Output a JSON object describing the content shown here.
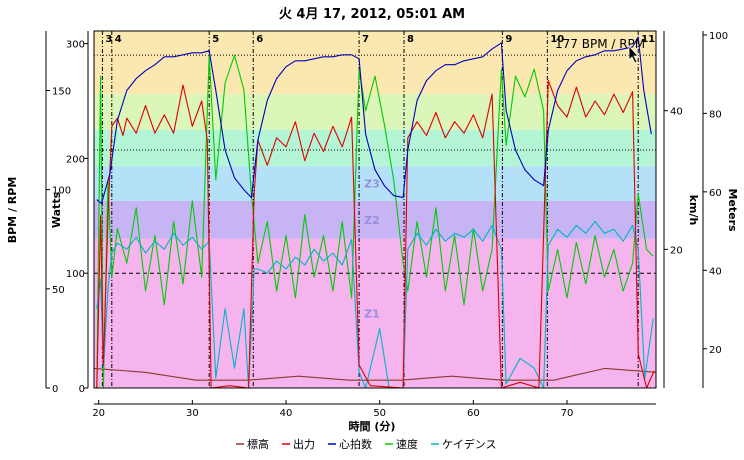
{
  "chart_data": {
    "type": "line",
    "title": "火 4月 17, 2012, 05:01 AM",
    "xlabel": "時間 (分)",
    "xlim": [
      19.5,
      79.5
    ],
    "x_ticks": [
      20,
      30,
      40,
      50,
      60,
      70
    ],
    "tooltip": "177 BPM / RPM",
    "axes": {
      "bpm": {
        "label": "BPM / RPM",
        "range": [
          0,
          180
        ],
        "ticks": [
          0,
          50,
          100,
          150
        ]
      },
      "watts": {
        "label": "Watts",
        "range": [
          0,
          311
        ],
        "ticks": [
          0,
          100,
          200,
          300
        ]
      },
      "kmh": {
        "label": "km/h",
        "range": [
          0,
          51.5
        ],
        "ticks": [
          20,
          40
        ]
      },
      "meters": {
        "label": "Meters",
        "range": [
          10,
          101
        ],
        "ticks": [
          20,
          40,
          60,
          80,
          100
        ]
      }
    },
    "zones": [
      {
        "name": "",
        "from": 256,
        "to": 311,
        "color": "#fbe8b0"
      },
      {
        "name": "",
        "from": 225,
        "to": 256,
        "color": "#dcf5b8"
      },
      {
        "name": "",
        "from": 193,
        "to": 225,
        "color": "#b4f5d6"
      },
      {
        "name": "Z3",
        "from": 163,
        "to": 193,
        "color": "#b4e0f8"
      },
      {
        "name": "Z2",
        "from": 130,
        "to": 163,
        "color": "#c6b4f5"
      },
      {
        "name": "Z1",
        "from": 0,
        "to": 130,
        "color": "#f5b4ee"
      }
    ],
    "reference_lines": {
      "watts": 290,
      "bpm": 120,
      "watts_dashed": 100
    },
    "laps": [
      {
        "label": "3",
        "x": 20.4
      },
      {
        "label": "4",
        "x": 21.4
      },
      {
        "label": "5",
        "x": 31.8
      },
      {
        "label": "6",
        "x": 36.5
      },
      {
        "label": "7",
        "x": 47.8
      },
      {
        "label": "8",
        "x": 52.6
      },
      {
        "label": "9",
        "x": 63.1
      },
      {
        "label": "10",
        "x": 67.9
      },
      {
        "label": "11",
        "x": 77.6
      }
    ],
    "series": [
      {
        "name": "標高",
        "color": "#8b3a2a",
        "axis": "meters",
        "values": [
          15,
          14,
          12,
          12,
          13,
          12,
          12,
          13,
          12,
          12,
          15,
          14
        ]
      },
      {
        "name": "出力",
        "color": "#e00000",
        "axis": "watts",
        "points": [
          [
            19.8,
            0
          ],
          [
            20.2,
            150
          ],
          [
            20.5,
            20
          ],
          [
            21.0,
            150
          ],
          [
            21.4,
            228
          ],
          [
            22,
            235
          ],
          [
            22.6,
            220
          ],
          [
            23,
            235
          ],
          [
            24,
            222
          ],
          [
            25,
            246
          ],
          [
            26,
            222
          ],
          [
            27,
            238
          ],
          [
            28,
            222
          ],
          [
            29,
            264
          ],
          [
            30,
            228
          ],
          [
            31,
            250
          ],
          [
            31.6,
            216
          ],
          [
            32,
            0
          ],
          [
            34,
            2
          ],
          [
            36,
            0
          ],
          [
            36.6,
            170
          ],
          [
            37,
            216
          ],
          [
            38,
            194
          ],
          [
            39,
            218
          ],
          [
            40,
            210
          ],
          [
            41,
            232
          ],
          [
            42,
            198
          ],
          [
            43,
            222
          ],
          [
            44,
            206
          ],
          [
            45,
            228
          ],
          [
            46,
            210
          ],
          [
            47,
            236
          ],
          [
            47.8,
            20
          ],
          [
            49,
            2
          ],
          [
            52.5,
            0
          ],
          [
            53,
            218
          ],
          [
            54,
            232
          ],
          [
            55,
            220
          ],
          [
            56,
            240
          ],
          [
            57,
            218
          ],
          [
            58,
            232
          ],
          [
            59,
            222
          ],
          [
            60,
            238
          ],
          [
            61,
            218
          ],
          [
            62,
            256
          ],
          [
            63,
            0
          ],
          [
            65,
            5
          ],
          [
            67,
            0
          ],
          [
            68,
            268
          ],
          [
            69,
            246
          ],
          [
            70,
            236
          ],
          [
            71,
            262
          ],
          [
            72,
            236
          ],
          [
            73,
            250
          ],
          [
            74,
            238
          ],
          [
            75,
            256
          ],
          [
            76,
            240
          ],
          [
            77,
            258
          ],
          [
            77.6,
            30
          ],
          [
            78.5,
            0
          ],
          [
            79.3,
            15
          ]
        ]
      },
      {
        "name": "心拍数",
        "color": "#0000c0",
        "axis": "bpm",
        "points": [
          [
            19.8,
            95
          ],
          [
            20.3,
            93
          ],
          [
            21.2,
            108
          ],
          [
            22,
            135
          ],
          [
            23,
            150
          ],
          [
            24,
            156
          ],
          [
            25,
            160
          ],
          [
            26,
            163
          ],
          [
            27,
            167
          ],
          [
            28,
            167
          ],
          [
            29,
            168
          ],
          [
            30,
            169
          ],
          [
            31,
            169
          ],
          [
            31.8,
            170
          ],
          [
            32.5,
            150
          ],
          [
            33.5,
            120
          ],
          [
            34.5,
            106
          ],
          [
            35.5,
            100
          ],
          [
            36.3,
            96
          ],
          [
            37,
            125
          ],
          [
            38,
            145
          ],
          [
            39,
            156
          ],
          [
            40,
            162
          ],
          [
            41,
            165
          ],
          [
            42,
            165
          ],
          [
            43,
            166
          ],
          [
            44,
            167
          ],
          [
            45,
            167
          ],
          [
            46,
            168
          ],
          [
            47,
            168
          ],
          [
            47.8,
            166
          ],
          [
            48.5,
            128
          ],
          [
            49.5,
            110
          ],
          [
            50.5,
            102
          ],
          [
            51.5,
            97
          ],
          [
            52.5,
            96
          ],
          [
            53,
            120
          ],
          [
            54,
            145
          ],
          [
            55,
            155
          ],
          [
            56,
            160
          ],
          [
            57,
            163
          ],
          [
            58,
            163
          ],
          [
            59,
            165
          ],
          [
            60,
            166
          ],
          [
            61,
            167
          ],
          [
            62,
            171
          ],
          [
            63,
            174
          ],
          [
            63.5,
            140
          ],
          [
            64.5,
            120
          ],
          [
            65.5,
            110
          ],
          [
            66.5,
            105
          ],
          [
            67.5,
            102
          ],
          [
            68,
            130
          ],
          [
            69,
            150
          ],
          [
            70,
            160
          ],
          [
            71,
            165
          ],
          [
            72,
            167
          ],
          [
            73,
            168
          ],
          [
            74,
            170
          ],
          [
            75,
            170
          ],
          [
            76,
            171
          ],
          [
            77,
            172
          ],
          [
            77.6,
            177
          ],
          [
            78.2,
            150
          ],
          [
            79,
            128
          ]
        ]
      },
      {
        "name": "速度",
        "color": "#00cc00",
        "axis": "kmh",
        "points": [
          [
            19.8,
            0
          ],
          [
            20.2,
            45
          ],
          [
            20.5,
            0
          ],
          [
            21,
            30
          ],
          [
            21.4,
            16
          ],
          [
            22,
            23
          ],
          [
            23,
            18
          ],
          [
            24,
            26
          ],
          [
            25,
            14
          ],
          [
            26,
            22
          ],
          [
            27,
            12
          ],
          [
            28,
            24
          ],
          [
            29,
            15
          ],
          [
            30,
            27
          ],
          [
            31,
            16
          ],
          [
            31.8,
            48
          ],
          [
            32.5,
            30
          ],
          [
            33.5,
            44
          ],
          [
            34.5,
            48
          ],
          [
            35.5,
            43
          ],
          [
            36.3,
            28
          ],
          [
            37,
            18
          ],
          [
            38,
            24
          ],
          [
            39,
            14
          ],
          [
            40,
            22
          ],
          [
            41,
            13
          ],
          [
            42,
            25
          ],
          [
            43,
            16
          ],
          [
            44,
            22
          ],
          [
            45,
            14
          ],
          [
            46,
            24
          ],
          [
            47,
            13
          ],
          [
            47.8,
            46
          ],
          [
            48.5,
            40
          ],
          [
            49.5,
            45
          ],
          [
            50.5,
            38
          ],
          [
            51.5,
            30
          ],
          [
            52.5,
            18
          ],
          [
            53,
            14
          ],
          [
            54,
            24
          ],
          [
            55,
            16
          ],
          [
            56,
            26
          ],
          [
            57,
            14
          ],
          [
            58,
            22
          ],
          [
            59,
            12
          ],
          [
            60,
            23
          ],
          [
            61,
            14
          ],
          [
            62,
            20
          ],
          [
            63,
            46
          ],
          [
            63.5,
            35
          ],
          [
            64.5,
            45
          ],
          [
            65.5,
            42
          ],
          [
            66.5,
            46
          ],
          [
            67.5,
            40
          ],
          [
            68,
            14
          ],
          [
            69,
            20
          ],
          [
            70,
            13
          ],
          [
            71,
            21
          ],
          [
            72,
            15
          ],
          [
            73,
            22
          ],
          [
            74,
            16
          ],
          [
            75,
            20
          ],
          [
            76,
            14
          ],
          [
            77,
            18
          ],
          [
            77.6,
            28
          ],
          [
            78.5,
            20
          ],
          [
            79.2,
            19
          ]
        ]
      },
      {
        "name": "ケイデンス",
        "color": "#00b4c8",
        "axis": "bpm",
        "points": [
          [
            19.8,
            40
          ],
          [
            20.2,
            55
          ],
          [
            20.5,
            10
          ],
          [
            21,
            50
          ],
          [
            21.4,
            68
          ],
          [
            22,
            73
          ],
          [
            23,
            70
          ],
          [
            24,
            76
          ],
          [
            25,
            68
          ],
          [
            26,
            74
          ],
          [
            27,
            70
          ],
          [
            28,
            78
          ],
          [
            29,
            72
          ],
          [
            30,
            76
          ],
          [
            31,
            70
          ],
          [
            31.8,
            74
          ],
          [
            32.5,
            5
          ],
          [
            33.5,
            40
          ],
          [
            34.5,
            10
          ],
          [
            35.5,
            40
          ],
          [
            36,
            0
          ],
          [
            36.6,
            60
          ],
          [
            37,
            60
          ],
          [
            38,
            58
          ],
          [
            39,
            64
          ],
          [
            40,
            60
          ],
          [
            41,
            66
          ],
          [
            42,
            62
          ],
          [
            43,
            70
          ],
          [
            44,
            64
          ],
          [
            45,
            68
          ],
          [
            46,
            62
          ],
          [
            47,
            75
          ],
          [
            47.8,
            8
          ],
          [
            48.5,
            0
          ],
          [
            50,
            30
          ],
          [
            51,
            0
          ],
          [
            52.5,
            0
          ],
          [
            53,
            70
          ],
          [
            54,
            78
          ],
          [
            55,
            72
          ],
          [
            56,
            80
          ],
          [
            57,
            74
          ],
          [
            58,
            78
          ],
          [
            59,
            76
          ],
          [
            60,
            80
          ],
          [
            61,
            74
          ],
          [
            62,
            82
          ],
          [
            63,
            70
          ],
          [
            63.5,
            2
          ],
          [
            65,
            15
          ],
          [
            66.5,
            10
          ],
          [
            67.5,
            0
          ],
          [
            68,
            72
          ],
          [
            69,
            80
          ],
          [
            70,
            76
          ],
          [
            71,
            82
          ],
          [
            72,
            78
          ],
          [
            73,
            84
          ],
          [
            74,
            78
          ],
          [
            75,
            80
          ],
          [
            76,
            74
          ],
          [
            77,
            82
          ],
          [
            77.6,
            70
          ],
          [
            78.3,
            5
          ],
          [
            79.2,
            35
          ]
        ]
      }
    ],
    "legend": [
      "標高",
      "出力",
      "心拍数",
      "速度",
      "ケイデンス"
    ],
    "legend_placement": "bottom"
  }
}
